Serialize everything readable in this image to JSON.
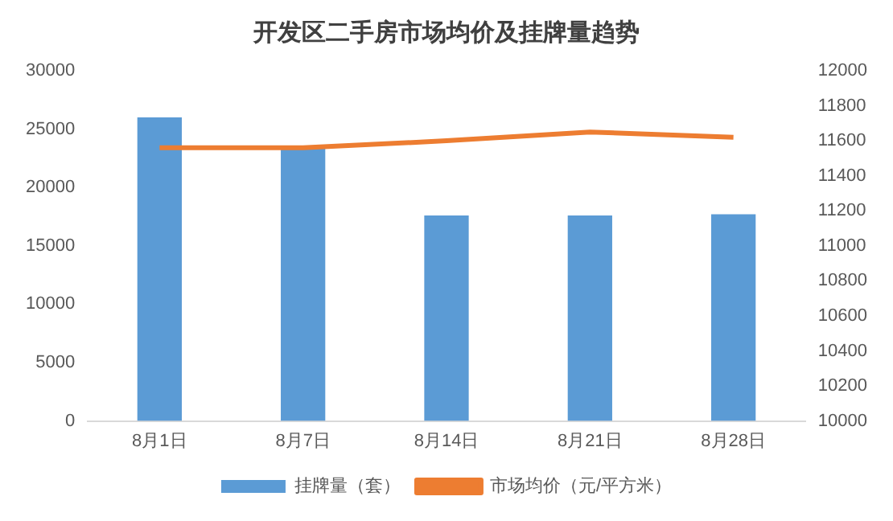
{
  "chart_data": {
    "type": "bar",
    "title": "开发区二手房市场均价及挂牌量趋势",
    "categories": [
      "8月1日",
      "8月7日",
      "8月14日",
      "8月21日",
      "8月28日"
    ],
    "series": [
      {
        "name": "挂牌量（套）",
        "color": "#5b9bd5",
        "values": [
          26000,
          23400,
          17600,
          17600,
          17700
        ]
      },
      {
        "name": "市场均价（元/平方米）",
        "type": "line",
        "axis": "y2",
        "color": "#ed7d31",
        "values": [
          11560,
          11560,
          11600,
          11650,
          11620
        ]
      }
    ],
    "ylim": [
      0,
      30000
    ],
    "yticks": [
      0,
      5000,
      10000,
      15000,
      20000,
      25000,
      30000
    ],
    "y2lim": [
      10000,
      12000
    ],
    "y2ticks": [
      10000,
      10200,
      10400,
      10600,
      10800,
      11000,
      11200,
      11400,
      11600,
      11800,
      12000
    ],
    "grid": false,
    "legend": "bottom",
    "marker": "none"
  }
}
